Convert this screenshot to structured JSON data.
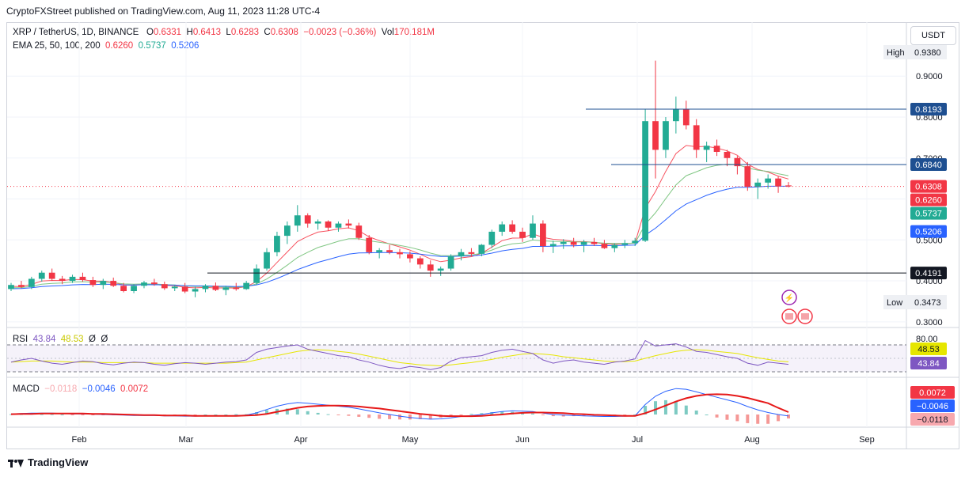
{
  "header": {
    "published": "CryptoFXStreet published on TradingView.com, Aug 11, 2023 11:28 UTC-4"
  },
  "legend": {
    "symbol": "XRP / TetherUS, 1D, BINANCE",
    "o_label": "O",
    "o": "0.6331",
    "h_label": "H",
    "h": "0.6413",
    "l_label": "L",
    "l": "0.6283",
    "c_label": "C",
    "c": "0.6308",
    "change": "−0.0023 (−0.36%)",
    "vol_label": "Vol",
    "vol": "170.181M",
    "ema_label": "EMA 25, 50, 100, 200",
    "ema25": "0.6260",
    "ema50": "0.5737",
    "ema100": "0.5206"
  },
  "rsi_legend": {
    "label": "RSI",
    "v1": "43.84",
    "v2": "48.53",
    "v3": "Ø",
    "v4": "Ø"
  },
  "macd_legend": {
    "label": "MACD",
    "hist": "−0.0118",
    "macd": "−0.0046",
    "signal": "0.0072"
  },
  "currency_button": "USDT",
  "footer": {
    "brand": "TradingView"
  },
  "colors": {
    "up": "#22ab94",
    "down": "#f23645",
    "ema25": "#f7525f",
    "ema50": "#81c784",
    "ema100": "#2962ff",
    "ema200": "#2962ff",
    "rsi": "#7e57c2",
    "rsi_ma": "#e6e600",
    "macd": "#2962ff",
    "signal": "#e61919",
    "level": "#1e4f91"
  },
  "chart_data": [
    {
      "type": "candlestick",
      "symbol": "XRP / TetherUS",
      "interval": "1D",
      "exchange": "BINANCE",
      "x_ticks": [
        "Feb",
        "Mar",
        "Apr",
        "May",
        "Jun",
        "Jul",
        "Aug",
        "Sep"
      ],
      "y_ticks": [
        "0.9000",
        "0.8000",
        "0.7000",
        "0.6000",
        "0.5000",
        "0.4000",
        "0.3000"
      ],
      "ylim": [
        0.29,
        0.97
      ],
      "high_label": "High",
      "high": "0.9380",
      "low_label": "Low",
      "low": "0.3473",
      "horizontal_levels": [
        {
          "value": 0.8193,
          "label": "0.8193",
          "style": "blue-line"
        },
        {
          "value": 0.684,
          "label": "0.6840",
          "style": "blue-line"
        },
        {
          "value": 0.4191,
          "label": "0.4191",
          "style": "black-line"
        }
      ],
      "price_tags": [
        {
          "value": 0.6308,
          "label": "0.6308",
          "color": "#f23645"
        },
        {
          "value": 0.626,
          "label": "0.6260",
          "color": "#f23645"
        },
        {
          "value": 0.5737,
          "label": "0.5737",
          "color": "#22ab94"
        },
        {
          "value": 0.5206,
          "label": "0.5206",
          "color": "#2962ff"
        }
      ],
      "candles_ohlc_approx": [
        [
          0.38,
          0.395,
          0.375,
          0.39
        ],
        [
          0.39,
          0.4,
          0.382,
          0.385
        ],
        [
          0.385,
          0.41,
          0.38,
          0.405
        ],
        [
          0.405,
          0.425,
          0.398,
          0.42
        ],
        [
          0.42,
          0.43,
          0.4,
          0.405
        ],
        [
          0.405,
          0.412,
          0.392,
          0.4
        ],
        [
          0.4,
          0.415,
          0.395,
          0.41
        ],
        [
          0.41,
          0.42,
          0.398,
          0.402
        ],
        [
          0.402,
          0.41,
          0.385,
          0.39
        ],
        [
          0.39,
          0.405,
          0.38,
          0.4
        ],
        [
          0.4,
          0.408,
          0.385,
          0.388
        ],
        [
          0.388,
          0.395,
          0.372,
          0.375
        ],
        [
          0.375,
          0.392,
          0.37,
          0.388
        ],
        [
          0.388,
          0.4,
          0.382,
          0.396
        ],
        [
          0.396,
          0.405,
          0.388,
          0.392
        ],
        [
          0.392,
          0.398,
          0.378,
          0.382
        ],
        [
          0.382,
          0.39,
          0.375,
          0.386
        ],
        [
          0.386,
          0.395,
          0.37,
          0.374
        ],
        [
          0.374,
          0.385,
          0.36,
          0.38
        ],
        [
          0.38,
          0.392,
          0.372,
          0.388
        ],
        [
          0.388,
          0.396,
          0.375,
          0.378
        ],
        [
          0.378,
          0.388,
          0.365,
          0.384
        ],
        [
          0.384,
          0.395,
          0.376,
          0.38
        ],
        [
          0.38,
          0.4,
          0.378,
          0.395
        ],
        [
          0.395,
          0.44,
          0.39,
          0.43
        ],
        [
          0.43,
          0.48,
          0.425,
          0.47
        ],
        [
          0.47,
          0.52,
          0.46,
          0.51
        ],
        [
          0.51,
          0.545,
          0.49,
          0.535
        ],
        [
          0.535,
          0.585,
          0.52,
          0.56
        ],
        [
          0.56,
          0.565,
          0.53,
          0.54
        ],
        [
          0.54,
          0.55,
          0.525,
          0.545
        ],
        [
          0.545,
          0.548,
          0.522,
          0.53
        ],
        [
          0.53,
          0.545,
          0.52,
          0.54
        ],
        [
          0.54,
          0.55,
          0.528,
          0.535
        ],
        [
          0.535,
          0.542,
          0.5,
          0.505
        ],
        [
          0.505,
          0.512,
          0.465,
          0.47
        ],
        [
          0.47,
          0.48,
          0.455,
          0.475
        ],
        [
          0.475,
          0.488,
          0.465,
          0.47
        ],
        [
          0.47,
          0.478,
          0.455,
          0.465
        ],
        [
          0.465,
          0.472,
          0.445,
          0.455
        ],
        [
          0.455,
          0.46,
          0.43,
          0.44
        ],
        [
          0.44,
          0.45,
          0.41,
          0.425
        ],
        [
          0.425,
          0.435,
          0.412,
          0.43
        ],
        [
          0.43,
          0.465,
          0.425,
          0.46
        ],
        [
          0.46,
          0.478,
          0.45,
          0.47
        ],
        [
          0.47,
          0.48,
          0.46,
          0.466
        ],
        [
          0.466,
          0.49,
          0.46,
          0.488
        ],
        [
          0.488,
          0.525,
          0.48,
          0.52
        ],
        [
          0.52,
          0.545,
          0.51,
          0.538
        ],
        [
          0.538,
          0.548,
          0.515,
          0.52
        ],
        [
          0.52,
          0.53,
          0.495,
          0.505
        ],
        [
          0.505,
          0.56,
          0.5,
          0.54
        ],
        [
          0.54,
          0.548,
          0.47,
          0.485
        ],
        [
          0.485,
          0.498,
          0.468,
          0.49
        ],
        [
          0.49,
          0.502,
          0.478,
          0.495
        ],
        [
          0.495,
          0.505,
          0.482,
          0.488
        ],
        [
          0.488,
          0.5,
          0.47,
          0.495
        ],
        [
          0.495,
          0.505,
          0.485,
          0.49
        ],
        [
          0.49,
          0.5,
          0.478,
          0.48
        ],
        [
          0.48,
          0.492,
          0.47,
          0.488
        ],
        [
          0.488,
          0.5,
          0.48,
          0.492
        ],
        [
          0.492,
          0.505,
          0.485,
          0.498
        ],
        [
          0.498,
          0.82,
          0.495,
          0.79
        ],
        [
          0.79,
          0.938,
          0.65,
          0.72
        ],
        [
          0.72,
          0.8,
          0.7,
          0.79
        ],
        [
          0.79,
          0.85,
          0.76,
          0.82
        ],
        [
          0.82,
          0.84,
          0.77,
          0.78
        ],
        [
          0.78,
          0.795,
          0.7,
          0.72
        ],
        [
          0.72,
          0.74,
          0.69,
          0.73
        ],
        [
          0.73,
          0.745,
          0.705,
          0.715
        ],
        [
          0.715,
          0.72,
          0.68,
          0.7
        ],
        [
          0.7,
          0.705,
          0.66,
          0.68
        ],
        [
          0.68,
          0.69,
          0.62,
          0.63
        ],
        [
          0.63,
          0.65,
          0.6,
          0.64
        ],
        [
          0.64,
          0.66,
          0.625,
          0.65
        ],
        [
          0.65,
          0.655,
          0.615,
          0.631
        ],
        [
          0.6331,
          0.6413,
          0.6283,
          0.6308
        ]
      ]
    },
    {
      "type": "line",
      "name": "RSI",
      "y_ticks": [
        "80.00"
      ],
      "tags": [
        {
          "label": "48.53",
          "color": "#e6e600"
        },
        {
          "label": "43.84",
          "color": "#7e57c2"
        }
      ],
      "rsi": [
        48,
        52,
        55,
        50,
        46,
        44,
        47,
        50,
        49,
        45,
        43,
        46,
        48,
        47,
        44,
        42,
        45,
        47,
        46,
        44,
        46,
        48,
        49,
        52,
        66,
        72,
        75,
        78,
        80,
        72,
        68,
        64,
        60,
        58,
        52,
        48,
        42,
        38,
        36,
        40,
        38,
        34,
        38,
        50,
        56,
        58,
        60,
        66,
        70,
        72,
        68,
        64,
        52,
        46,
        50,
        52,
        48,
        46,
        44,
        48,
        50,
        54,
        88,
        78,
        80,
        82,
        76,
        68,
        66,
        62,
        58,
        55,
        46,
        42,
        48,
        46,
        43.84
      ],
      "rsi_ma": [
        48,
        49,
        50,
        50,
        50,
        49,
        48,
        48,
        48,
        47,
        47,
        47,
        47,
        47,
        46,
        46,
        46,
        46,
        46,
        46,
        46,
        46,
        47,
        48,
        52,
        56,
        60,
        64,
        68,
        70,
        71,
        70,
        68,
        66,
        63,
        59,
        55,
        51,
        47,
        45,
        43,
        42,
        41,
        43,
        45,
        47,
        50,
        53,
        57,
        60,
        63,
        64,
        63,
        61,
        58,
        56,
        54,
        52,
        50,
        49,
        49,
        50,
        55,
        60,
        64,
        68,
        70,
        71,
        70,
        68,
        66,
        64,
        60,
        56,
        53,
        50,
        48.53
      ]
    },
    {
      "type": "line",
      "name": "MACD",
      "tags": [
        {
          "label": "0.0072",
          "color": "#f23645"
        },
        {
          "label": "−0.0046",
          "color": "#2962ff"
        },
        {
          "label": "−0.0118",
          "color": "#f7a8ae"
        }
      ],
      "macd": [
        0.002,
        0.003,
        0.004,
        0.004,
        0.004,
        0.003,
        0.002,
        0.002,
        0.001,
        0.0,
        -0.001,
        -0.002,
        -0.003,
        -0.003,
        -0.003,
        -0.004,
        -0.004,
        -0.005,
        -0.005,
        -0.004,
        -0.004,
        -0.004,
        -0.003,
        -0.002,
        0.005,
        0.015,
        0.025,
        0.032,
        0.036,
        0.034,
        0.031,
        0.028,
        0.025,
        0.022,
        0.017,
        0.011,
        0.005,
        0.0,
        -0.005,
        -0.009,
        -0.012,
        -0.014,
        -0.013,
        -0.01,
        -0.006,
        -0.003,
        0.0,
        0.005,
        0.009,
        0.011,
        0.01,
        0.009,
        0.004,
        0.0,
        -0.002,
        -0.003,
        -0.004,
        -0.005,
        -0.006,
        -0.006,
        -0.005,
        -0.004,
        0.03,
        0.055,
        0.07,
        0.078,
        0.076,
        0.068,
        0.06,
        0.052,
        0.044,
        0.036,
        0.024,
        0.014,
        0.006,
        0.0,
        -0.0046
      ],
      "signal": [
        0.001,
        0.002,
        0.002,
        0.003,
        0.003,
        0.003,
        0.003,
        0.003,
        0.002,
        0.002,
        0.001,
        0.0,
        -0.001,
        -0.002,
        -0.002,
        -0.003,
        -0.003,
        -0.003,
        -0.004,
        -0.004,
        -0.004,
        -0.004,
        -0.004,
        -0.003,
        -0.002,
        0.002,
        0.008,
        0.014,
        0.02,
        0.024,
        0.026,
        0.027,
        0.027,
        0.026,
        0.024,
        0.021,
        0.018,
        0.014,
        0.01,
        0.006,
        0.002,
        -0.001,
        -0.004,
        -0.005,
        -0.005,
        -0.005,
        -0.004,
        -0.002,
        0.0,
        0.003,
        0.005,
        0.006,
        0.006,
        0.005,
        0.004,
        0.002,
        0.001,
        -0.001,
        -0.002,
        -0.003,
        -0.004,
        -0.004,
        0.004,
        0.015,
        0.027,
        0.039,
        0.049,
        0.056,
        0.06,
        0.061,
        0.06,
        0.056,
        0.05,
        0.042,
        0.034,
        0.02,
        0.0072
      ]
    }
  ]
}
